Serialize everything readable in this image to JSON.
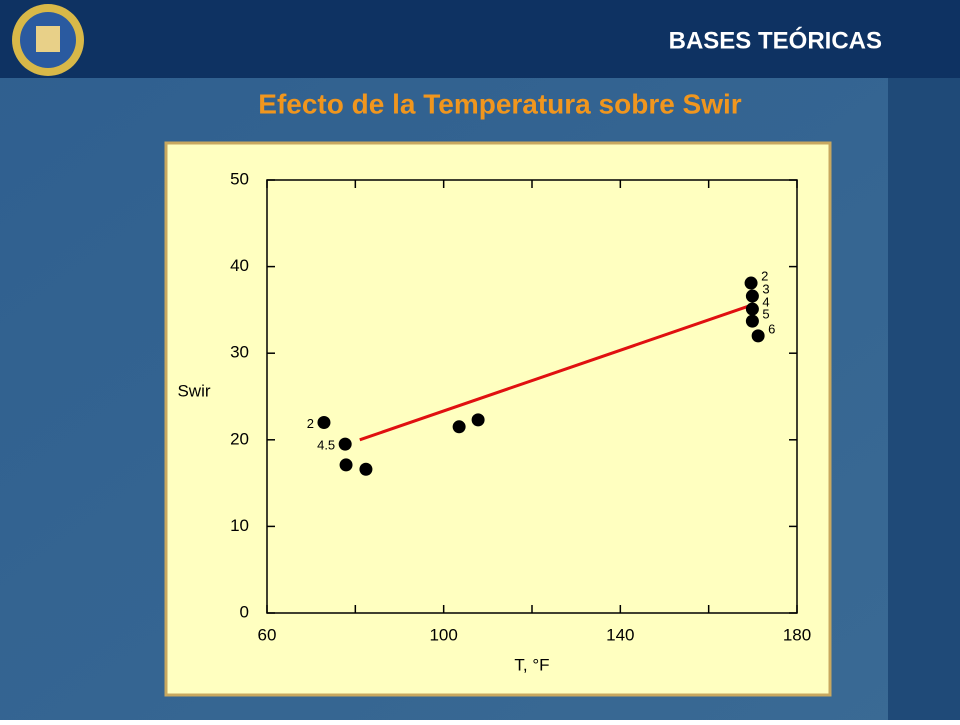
{
  "slide": {
    "header": "BASES TEÓRICAS",
    "title": "Efecto de la Temperatura sobre Swir"
  },
  "chart_data": {
    "type": "scatter",
    "xlabel": "T, °F",
    "ylabel": "Swir",
    "xlim": [
      60,
      180
    ],
    "xticks": [
      60,
      100,
      140,
      180
    ],
    "xminor_ticks": [
      80,
      120,
      160
    ],
    "ylim": [
      0,
      50
    ],
    "yticks": [
      0,
      10,
      20,
      30,
      40,
      50
    ],
    "grid": false,
    "series": [
      {
        "color": "#000000",
        "x": [
          72.9,
          77.7,
          77.9,
          82.4,
          103.5,
          107.8,
          169.6,
          169.9,
          169.9,
          169.9,
          171.2
        ],
        "values": [
          22.0,
          19.5,
          17.1,
          16.6,
          21.5,
          22.3,
          38.1,
          36.6,
          35.1,
          33.7,
          32.0
        ],
        "labels": [
          "2",
          "4.5",
          null,
          null,
          null,
          null,
          "2",
          "3",
          "4",
          "5",
          "6"
        ]
      }
    ],
    "trend_line": {
      "color": "#e01010",
      "x": [
        81,
        170
      ],
      "values": [
        20.0,
        35.6
      ]
    }
  }
}
